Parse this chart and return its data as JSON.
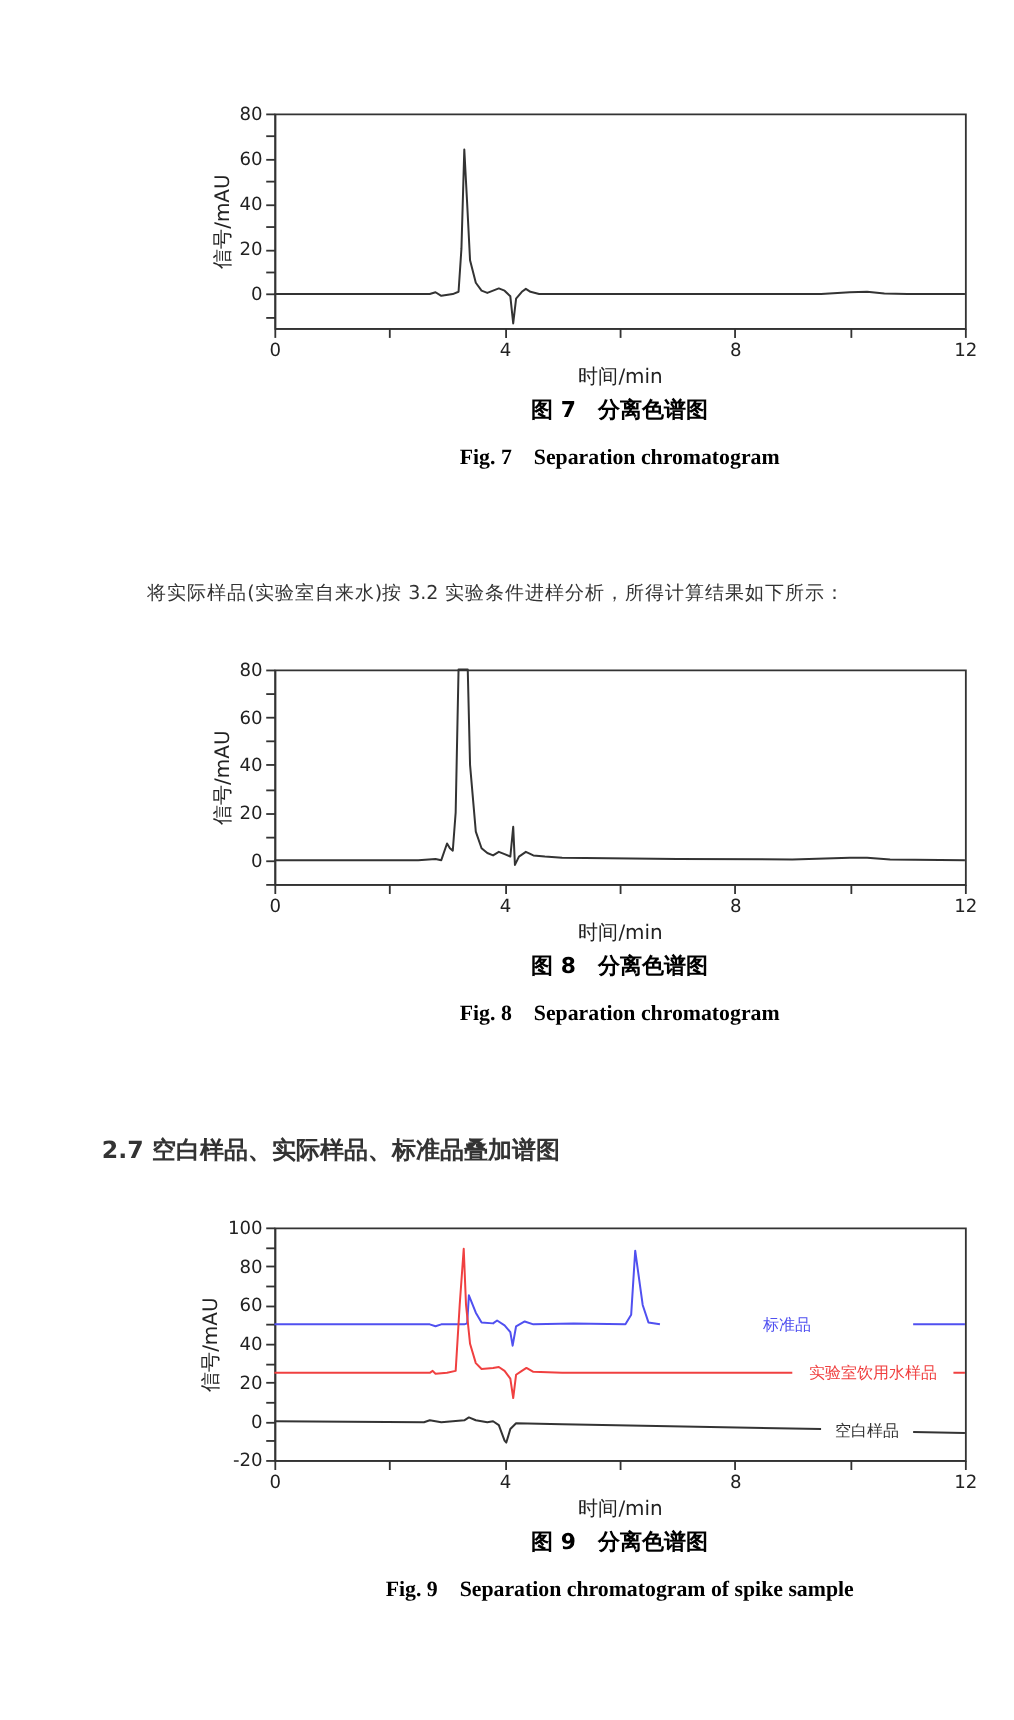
{
  "chart_data": [
    {
      "type": "line",
      "title": "图 7　分离色谱图",
      "subtitle": "Fig. 7　Separation chromatogram",
      "xlabel": "时间/min",
      "ylabel": "信号/mAU",
      "xlim": [
        0,
        12
      ],
      "xticks": [
        0,
        {
          "value": 2,
          "label": null
        },
        4,
        {
          "value": 6,
          "label": null
        },
        8,
        {
          "value": 10,
          "label": null
        },
        12
      ],
      "ylim": [
        -15,
        80
      ],
      "yticks": [
        {
          "value": -10,
          "label": null
        },
        0,
        {
          "value": 10,
          "label": null
        },
        20,
        {
          "value": 30,
          "label": null
        },
        40,
        {
          "value": 50,
          "label": null
        },
        60,
        {
          "value": 70,
          "label": null
        },
        80
      ],
      "grid": false,
      "legend": false,
      "marker": "none",
      "line_style": "solid",
      "series": [
        {
          "color": "#333333",
          "x": [
            0,
            2.7,
            2.8,
            2.9,
            3.1,
            3.2,
            3.25,
            3.3,
            3.35,
            3.4,
            3.5,
            3.6,
            3.7,
            3.8,
            3.9,
            4.0,
            4.1,
            4.15,
            4.2,
            4.3,
            4.37,
            4.45,
            4.6,
            6,
            9.5,
            10,
            10.3,
            10.6,
            11,
            12
          ],
          "values": [
            0,
            0,
            0.8,
            -0.8,
            0,
            1,
            20,
            64,
            40,
            15,
            5,
            1.5,
            0.5,
            1.5,
            2.5,
            1.5,
            -1,
            -13,
            -2,
            1,
            2.3,
            1,
            0,
            0,
            0,
            0.8,
            1,
            0.3,
            0,
            0
          ]
        }
      ]
    },
    {
      "type": "line",
      "title": "图 8　分离色谱图",
      "subtitle": "Fig. 8　Separation chromatogram",
      "xlabel": "时间/min",
      "ylabel": "信号/mAU",
      "annotations": [
        "将实际样品(实验室自来水)按 3.2 实验条件进样分析，所得计算结果如下所示："
      ],
      "xlim": [
        0,
        12
      ],
      "xticks": [
        0,
        {
          "value": 2,
          "label": null
        },
        4,
        {
          "value": 6,
          "label": null
        },
        8,
        {
          "value": 10,
          "label": null
        },
        12
      ],
      "ylim": [
        -10,
        80
      ],
      "yticks": [
        {
          "value": -10,
          "label": null
        },
        0,
        {
          "value": 10,
          "label": null
        },
        20,
        {
          "value": 30,
          "label": null
        },
        40,
        {
          "value": 50,
          "label": null
        },
        60,
        {
          "value": 70,
          "label": null
        },
        80
      ],
      "grid": false,
      "legend": false,
      "marker": "none",
      "line_style": "solid",
      "series": [
        {
          "color": "#333333",
          "x": [
            0,
            2.5,
            2.8,
            2.9,
            3.0,
            3.05,
            3.1,
            3.15,
            3.2,
            3.36,
            3.4,
            3.5,
            3.6,
            3.7,
            3.8,
            3.9,
            4.0,
            4.1,
            4.15,
            4.18,
            4.25,
            4.37,
            4.5,
            4.7,
            5,
            7,
            9,
            10,
            10.3,
            10.7,
            12
          ],
          "values": [
            0,
            0,
            0.5,
            0,
            7,
            5,
            4,
            20,
            80,
            80,
            40,
            12,
            5,
            3,
            2,
            3.5,
            2.5,
            1.5,
            14,
            -2,
            1.5,
            3.5,
            2,
            1.5,
            1,
            0.5,
            0.3,
            1,
            1,
            0.3,
            0
          ]
        }
      ]
    },
    {
      "type": "line",
      "title": "图 9　分离色谱图",
      "subtitle": "Fig. 9　Separation chromatogram of spike sample",
      "xlabel": "时间/min",
      "ylabel": "信号/mAU",
      "annotations": [
        "2.7 空白样品、实际样品、标准品叠加谱图"
      ],
      "xlim": [
        0,
        12
      ],
      "xticks": [
        0,
        {
          "value": 2,
          "label": null
        },
        4,
        {
          "value": 6,
          "label": null
        },
        8,
        {
          "value": 10,
          "label": null
        },
        12
      ],
      "ylim": [
        -20,
        100
      ],
      "yticks": [
        -20,
        {
          "value": -10,
          "label": null
        },
        0,
        {
          "value": 10,
          "label": null
        },
        20,
        {
          "value": 30,
          "label": null
        },
        40,
        {
          "value": 50,
          "label": null
        },
        60,
        {
          "value": 70,
          "label": null
        },
        80,
        {
          "value": 90,
          "label": null
        },
        100
      ],
      "grid": false,
      "legend": false,
      "marker": "none",
      "line_style": "solid",
      "series": [
        {
          "name": "标准品",
          "color": "#5050f0",
          "x": [
            0,
            2.7,
            2.8,
            2.9,
            3.3,
            3.35,
            3.38,
            3.5,
            3.6,
            3.8,
            3.87,
            4.0,
            4.1,
            4.14,
            4.2,
            4.35,
            4.5,
            5.2,
            6.1,
            6.2,
            6.27,
            6.4,
            6.5,
            6.7,
            9.7,
            10.4,
            11.1,
            12
          ],
          "values": [
            50,
            50,
            49,
            50,
            50,
            50.5,
            65,
            56,
            51,
            50.5,
            52,
            49.5,
            46,
            39,
            49,
            51.5,
            50,
            50.5,
            50,
            55,
            88,
            60,
            51,
            50,
            null,
            null,
            50,
            50
          ]
        },
        {
          "name": "实验室饮用水样品",
          "color": "#f04040",
          "x": [
            0,
            2.7,
            2.75,
            2.8,
            3.0,
            3.15,
            3.22,
            3.29,
            3.33,
            3.4,
            3.5,
            3.6,
            3.8,
            3.9,
            4.0,
            4.1,
            4.15,
            4.2,
            4.3,
            4.38,
            4.5,
            5,
            9.0,
            10.4,
            11.8,
            12
          ],
          "values": [
            25,
            25,
            26,
            24.5,
            25,
            26,
            60,
            89,
            60,
            40,
            30,
            27,
            27.5,
            28,
            26,
            22,
            12,
            24,
            26,
            27.5,
            25.5,
            25,
            25,
            null,
            25,
            25
          ]
        },
        {
          "name": "空白样品",
          "color": "#333333",
          "x": [
            0,
            2.6,
            2.7,
            2.9,
            3.3,
            3.38,
            3.5,
            3.7,
            3.8,
            3.9,
            4.0,
            4.03,
            4.1,
            4.2,
            5,
            9.5,
            10.4,
            11.1,
            12
          ],
          "values": [
            0,
            -0.5,
            0.5,
            -0.5,
            0.5,
            2,
            0.5,
            -0.5,
            0,
            -2,
            -10,
            -11,
            -4,
            -1,
            -1.5,
            -4,
            null,
            -5.5,
            -6
          ]
        }
      ]
    }
  ]
}
